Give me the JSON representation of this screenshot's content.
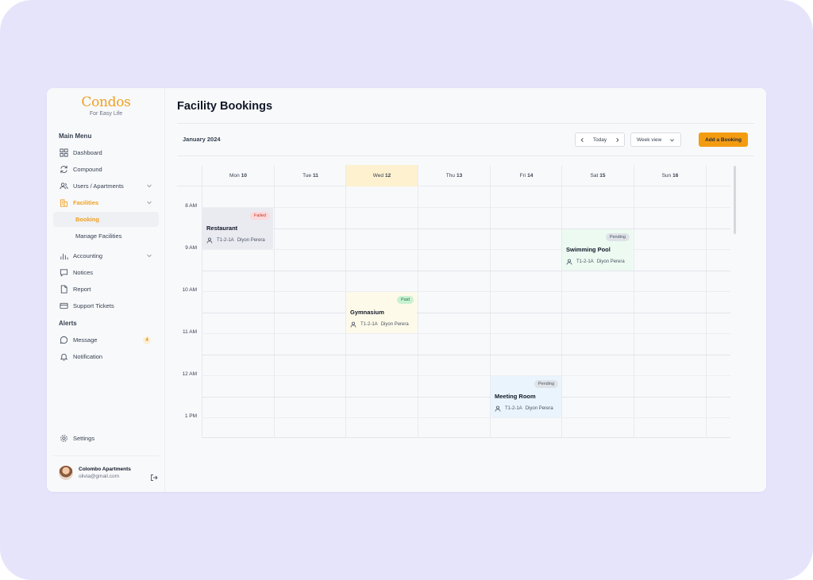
{
  "brand": {
    "name": "Condos",
    "tagline": "For Easy Life",
    "accent": "#f0a020"
  },
  "sidebar": {
    "main_menu_label": "Main Menu",
    "items": [
      {
        "label": "Dashboard",
        "icon": "grid-icon"
      },
      {
        "label": "Compound",
        "icon": "refresh-icon"
      },
      {
        "label": "Users / Apartments",
        "icon": "users-icon"
      },
      {
        "label": "Facilities",
        "icon": "building-icon"
      },
      {
        "label": "Booking"
      },
      {
        "label": "Manage Facilities"
      },
      {
        "label": "Accounting",
        "icon": "bar-chart-icon"
      },
      {
        "label": "Notices",
        "icon": "message-square-icon"
      },
      {
        "label": "Report",
        "icon": "file-icon"
      },
      {
        "label": "Support Tickets",
        "icon": "card-icon"
      }
    ],
    "alerts_label": "Alerts",
    "alerts": [
      {
        "label": "Message",
        "icon": "chat-icon",
        "count": "4"
      },
      {
        "label": "Notification",
        "icon": "bell-icon"
      }
    ],
    "settings_label": "Settings",
    "user": {
      "name": "Colombo Apartments",
      "email": "olivia@gmail.com"
    }
  },
  "header": {
    "title": "Facility Bookings",
    "month": "January 2024",
    "today_label": "Today",
    "view_label": "Week view",
    "add_label": "Add a Booking"
  },
  "calendar": {
    "days": [
      {
        "name": "Mon",
        "num": "10"
      },
      {
        "name": "Tue",
        "num": "11"
      },
      {
        "name": "Wed",
        "num": "12"
      },
      {
        "name": "Thu",
        "num": "13"
      },
      {
        "name": "Fri",
        "num": "14"
      },
      {
        "name": "Sat",
        "num": "15"
      },
      {
        "name": "Sun",
        "num": "16"
      }
    ],
    "highlighted_day": "Wed 12",
    "times": [
      "8 AM",
      "9 AM",
      "10 AM",
      "11 AM",
      "12 AM",
      "1 PM"
    ],
    "events": [
      {
        "title": "Restaurant",
        "status": "Failed",
        "unit": "T1-2-1A",
        "person": "Diyon Perera",
        "day": "Mon 10",
        "color": "#eaeaf1",
        "status_bg": "#fbd9dc",
        "status_fg": "#c0392b"
      },
      {
        "title": "Swimming Pool",
        "status": "Pending",
        "unit": "T1-2-1A",
        "person": "Diyon Perera",
        "day": "Sat 15",
        "color": "#ecfaf1",
        "status_bg": "#dfe2e7",
        "status_fg": "#4b5563"
      },
      {
        "title": "Gymnasium",
        "status": "Paid",
        "unit": "T1-2-1A",
        "person": "Diyon Perera",
        "day": "Wed 12",
        "color": "#fefaea",
        "status_bg": "#c9f1d4",
        "status_fg": "#1e7a3c"
      },
      {
        "title": "Meeting Room",
        "status": "Pending",
        "unit": "T1-2-1A",
        "person": "Diyon Perera",
        "day": "Fri 14",
        "color": "#eaf4fd",
        "status_bg": "#dfe2e7",
        "status_fg": "#4b5563"
      }
    ]
  }
}
